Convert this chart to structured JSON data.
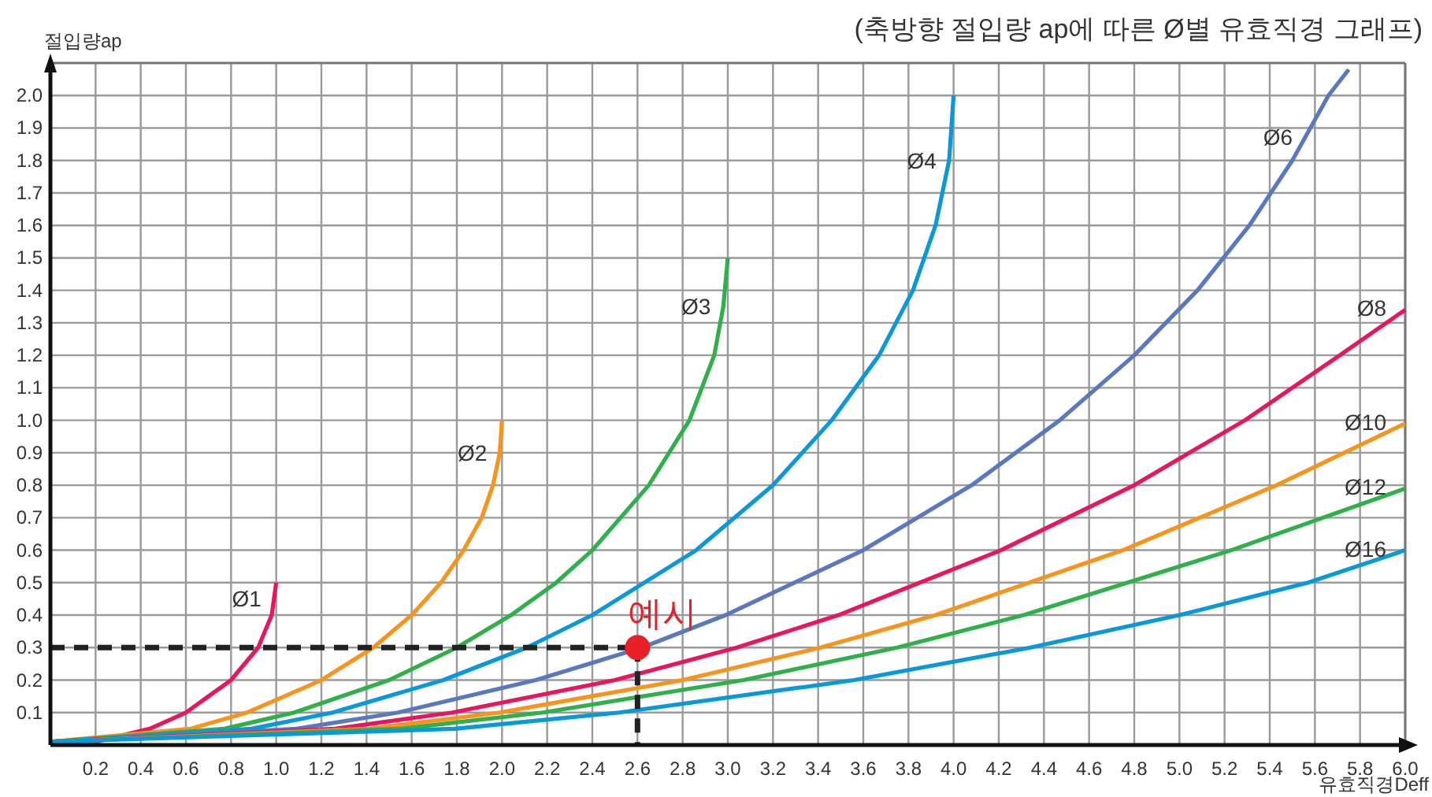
{
  "chart_data": {
    "type": "line",
    "title": "(축방향 절입량 ap에 따른 Ø별 유효직경 그래프)",
    "xlabel": "유효직경Deff",
    "ylabel": "절입량ap",
    "xlim": [
      0,
      6
    ],
    "ylim": [
      0,
      2.1
    ],
    "xticks": [
      0.2,
      0.4,
      0.6,
      0.8,
      {
        "value": 1,
        "label": "1.0"
      },
      1.2,
      1.4,
      1.6,
      1.8,
      {
        "value": 2,
        "label": "2.0"
      },
      2.2,
      2.4,
      2.6,
      2.8,
      {
        "value": 3,
        "label": "3.0"
      },
      3.2,
      3.4,
      3.6,
      3.8,
      {
        "value": 4,
        "label": "4.0"
      },
      4.2,
      4.4,
      4.6,
      4.8,
      {
        "value": 5,
        "label": "5.0"
      },
      5.2,
      5.4,
      5.6,
      5.8,
      {
        "value": 6,
        "label": "6.0"
      }
    ],
    "yticks": [
      0.1,
      0.2,
      0.3,
      0.4,
      0.5,
      0.6,
      0.7,
      0.8,
      0.9,
      {
        "value": 1,
        "label": "1.0"
      },
      1.1,
      1.2,
      1.3,
      1.4,
      1.5,
      1.6,
      1.7,
      1.8,
      1.9,
      {
        "value": 2,
        "label": "2.0"
      }
    ],
    "grid": true,
    "marker": "none",
    "line_style": "solid",
    "annotations": [
      {
        "text": "예시",
        "x": 2.6,
        "y": 0.3
      }
    ],
    "series": [
      {
        "name": "Ø1",
        "color": "#e8175d",
        "x": [
          0,
          0.2,
          0.44,
          0.6,
          0.8,
          0.92,
          0.98,
          1.0
        ],
        "values": [
          0.01,
          0.01,
          0.05,
          0.1,
          0.2,
          0.3,
          0.4,
          0.5
        ]
      },
      {
        "name": "Ø2",
        "color": "#f7941d",
        "x": [
          0,
          0.62,
          0.87,
          1.2,
          1.43,
          1.6,
          1.73,
          1.83,
          1.91,
          1.96,
          1.99,
          2.0
        ],
        "values": [
          0.01,
          0.05,
          0.1,
          0.2,
          0.3,
          0.4,
          0.5,
          0.6,
          0.7,
          0.8,
          0.9,
          1.0
        ]
      },
      {
        "name": "Ø3",
        "color": "#2fb04a",
        "x": [
          0,
          0.77,
          1.08,
          1.5,
          1.8,
          2.04,
          2.24,
          2.4,
          2.65,
          2.83,
          2.94,
          2.98,
          3.0
        ],
        "values": [
          0.01,
          0.05,
          0.1,
          0.2,
          0.3,
          0.4,
          0.5,
          0.6,
          0.8,
          1.0,
          1.2,
          1.35,
          1.5
        ]
      },
      {
        "name": "Ø4",
        "color": "#0a98d8",
        "x": [
          0,
          0.89,
          1.25,
          1.74,
          2.11,
          2.4,
          2.86,
          3.2,
          3.46,
          3.67,
          3.82,
          3.92,
          3.98,
          4.0
        ],
        "values": [
          0.01,
          0.05,
          0.1,
          0.2,
          0.3,
          0.4,
          0.6,
          0.8,
          1.0,
          1.2,
          1.4,
          1.6,
          1.8,
          2.0
        ]
      },
      {
        "name": "Ø6",
        "color": "#5b78be",
        "x": [
          0,
          1.09,
          1.54,
          2.15,
          2.62,
          2.99,
          3.6,
          4.08,
          4.47,
          4.8,
          5.08,
          5.31,
          5.5,
          5.66,
          5.75
        ],
        "values": [
          0.01,
          0.05,
          0.1,
          0.2,
          0.3,
          0.4,
          0.6,
          0.8,
          1.0,
          1.2,
          1.4,
          1.6,
          1.8,
          2.0,
          2.08
        ]
      },
      {
        "name": "Ø8",
        "color": "#e8175d",
        "x": [
          0,
          1.26,
          1.78,
          2.5,
          3.04,
          3.49,
          4.21,
          4.8,
          5.29,
          5.71,
          6.0
        ],
        "values": [
          0.01,
          0.05,
          0.1,
          0.2,
          0.3,
          0.4,
          0.6,
          0.8,
          1.0,
          1.2,
          1.34
        ]
      },
      {
        "name": "Ø10",
        "color": "#f7941d",
        "x": [
          0,
          1.41,
          1.99,
          2.8,
          3.41,
          3.92,
          4.75,
          5.43,
          6.0
        ],
        "values": [
          0.01,
          0.05,
          0.1,
          0.2,
          0.3,
          0.4,
          0.6,
          0.8,
          0.99
        ]
      },
      {
        "name": "Ø12",
        "color": "#2fb04a",
        "x": [
          0,
          1.55,
          2.18,
          3.07,
          3.75,
          4.31,
          5.23,
          6.0
        ],
        "values": [
          0.01,
          0.05,
          0.1,
          0.2,
          0.3,
          0.4,
          0.6,
          0.79
        ]
      },
      {
        "name": "Ø16",
        "color": "#0a98d8",
        "x": [
          0,
          1.79,
          2.52,
          3.56,
          4.34,
          5.0,
          5.57,
          6.0
        ],
        "values": [
          0.01,
          0.05,
          0.1,
          0.2,
          0.3,
          0.4,
          0.5,
          0.6
        ]
      },
      {
        "type": "line",
        "line_style": "dashed",
        "color": "#222222",
        "x": [
          0,
          2.6
        ],
        "values": [
          0.3,
          0.3
        ]
      },
      {
        "type": "line",
        "line_style": "dashed",
        "color": "#222222",
        "x": [
          2.6,
          2.6
        ],
        "values": [
          0.3,
          0
        ]
      },
      {
        "type": "scatter",
        "marker": "circle",
        "color": "#e8202a",
        "x": [
          2.6
        ],
        "values": [
          0.3
        ]
      }
    ]
  }
}
